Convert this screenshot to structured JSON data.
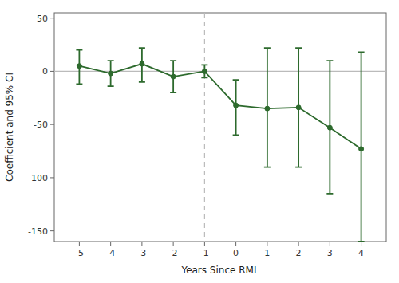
{
  "chart_data": {
    "type": "line",
    "x": [
      -5,
      -4,
      -3,
      -2,
      -1,
      0,
      1,
      2,
      3,
      4
    ],
    "values": [
      5,
      -2,
      7,
      -5,
      0,
      -32,
      -35,
      -34,
      -53,
      -73
    ],
    "ci_lower": [
      -12,
      -14,
      -10,
      -20,
      -6,
      -60,
      -90,
      -90,
      -115,
      -160
    ],
    "ci_upper": [
      20,
      10,
      22,
      10,
      6,
      -8,
      22,
      22,
      10,
      18
    ],
    "color": "#2d6a2d",
    "marker": "circle",
    "xlabel": "Years Since RML",
    "ylabel": "Coefficient and 95% CI",
    "xlim": [
      -5.8,
      4.8
    ],
    "ylim": [
      -160,
      55
    ],
    "xticks": [
      -5,
      -4,
      -3,
      -2,
      -1,
      0,
      1,
      2,
      3,
      4
    ],
    "yticks": [
      -150,
      -100,
      -50,
      0,
      50
    ],
    "grid": false,
    "reference_lines": [
      {
        "axis": "y",
        "value": 0,
        "color": "#bbbbbb",
        "line_style": "solid"
      },
      {
        "axis": "x",
        "value": -1,
        "color": "#bbbbbb",
        "line_style": "dashed"
      }
    ]
  }
}
